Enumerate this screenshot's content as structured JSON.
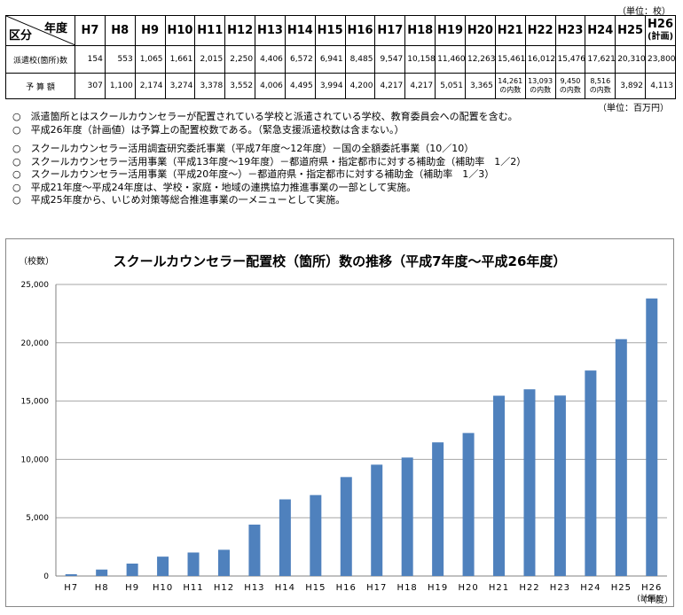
{
  "table": {
    "unit_label": "（単位：校）",
    "corner_year": "年度",
    "corner_category": "区分",
    "years": [
      "H7",
      "H8",
      "H9",
      "H10",
      "H11",
      "H12",
      "H13",
      "H14",
      "H15",
      "H16",
      "H17",
      "H18",
      "H19",
      "H20",
      "H21",
      "H22",
      "H23",
      "H24",
      "H25"
    ],
    "last_year_line1": "H26",
    "last_year_line2": "(計画)",
    "row1_label": "派遣校(箇所)数",
    "row1_values": [
      "154",
      "553",
      "1,065",
      "1,661",
      "2,015",
      "2,250",
      "4,406",
      "6,572",
      "6,941",
      "8,485",
      "9,547",
      "10,158",
      "11,460",
      "12,263",
      "15,461",
      "16,012",
      "15,476",
      "17,621",
      "20,310",
      "23,800"
    ],
    "row2_label": "予 算 額",
    "row2_values": [
      "307",
      "1,100",
      "2,174",
      "3,274",
      "3,378",
      "3,552",
      "4,006",
      "4,495",
      "3,994",
      "4,200",
      "4,217",
      "4,217",
      "5,051",
      "3,365",
      "14,261\nの内数",
      "13,093\nの内数",
      "9,450\nの内数",
      "8,516\nの内数",
      "3,892",
      "4,113"
    ],
    "budget_unit": "（単位：百万円）"
  },
  "notes": [
    "○　派遣箇所とはスクールカウンセラーが配置されている学校と派遣されている学校、教育委員会への配置を含む。",
    "○　平成26年度（計画値）は予算上の配置校数である。（緊急支援派遣校数は含まない。）",
    "○　スクールカウンセラー活用調査研究委託事業（平成7年度～12年度）－国の全額委託事業（10／10）",
    "○　スクールカウンセラー活用事業（平成13年度～19年度）－都道府県・指定都市に対する補助金（補助率　1／2）",
    "○　スクールカウンセラー活用事業（平成20年度～）－都道府県・指定都市に対する補助金（補助率　1／3）",
    "○　平成21年度～平成24年度は、学校・家庭・地域の連携協力推進事業の一部として実施。",
    "○　平成25年度から、いじめ対策等総合推進事業の一メニューとして実施。"
  ],
  "chart_data": {
    "type": "bar",
    "title": "スクールカウンセラー配置校（箇所）数の推移（平成7年度～平成26年度）",
    "ylabel": "（校数）",
    "xlabel": "（年度）",
    "categories": [
      "H7",
      "H8",
      "H9",
      "H10",
      "H11",
      "H12",
      "H13",
      "H14",
      "H15",
      "H16",
      "H17",
      "H18",
      "H19",
      "H20",
      "H21",
      "H22",
      "H23",
      "H24",
      "H25",
      "H26"
    ],
    "last_category_note": "(計画)",
    "values": [
      154,
      553,
      1065,
      1661,
      2015,
      2250,
      4406,
      6572,
      6941,
      8485,
      9547,
      10158,
      11460,
      12263,
      15461,
      16012,
      15476,
      17621,
      20310,
      23800
    ],
    "ylim": [
      0,
      25000
    ],
    "yticks": [
      0,
      5000,
      10000,
      15000,
      20000,
      25000
    ],
    "ytick_labels": [
      "0",
      "5,000",
      "10,000",
      "15,000",
      "20,000",
      "25,000"
    ],
    "grid": true,
    "bar_color": "#4f81bd",
    "grid_color": "#a6a6a6"
  }
}
